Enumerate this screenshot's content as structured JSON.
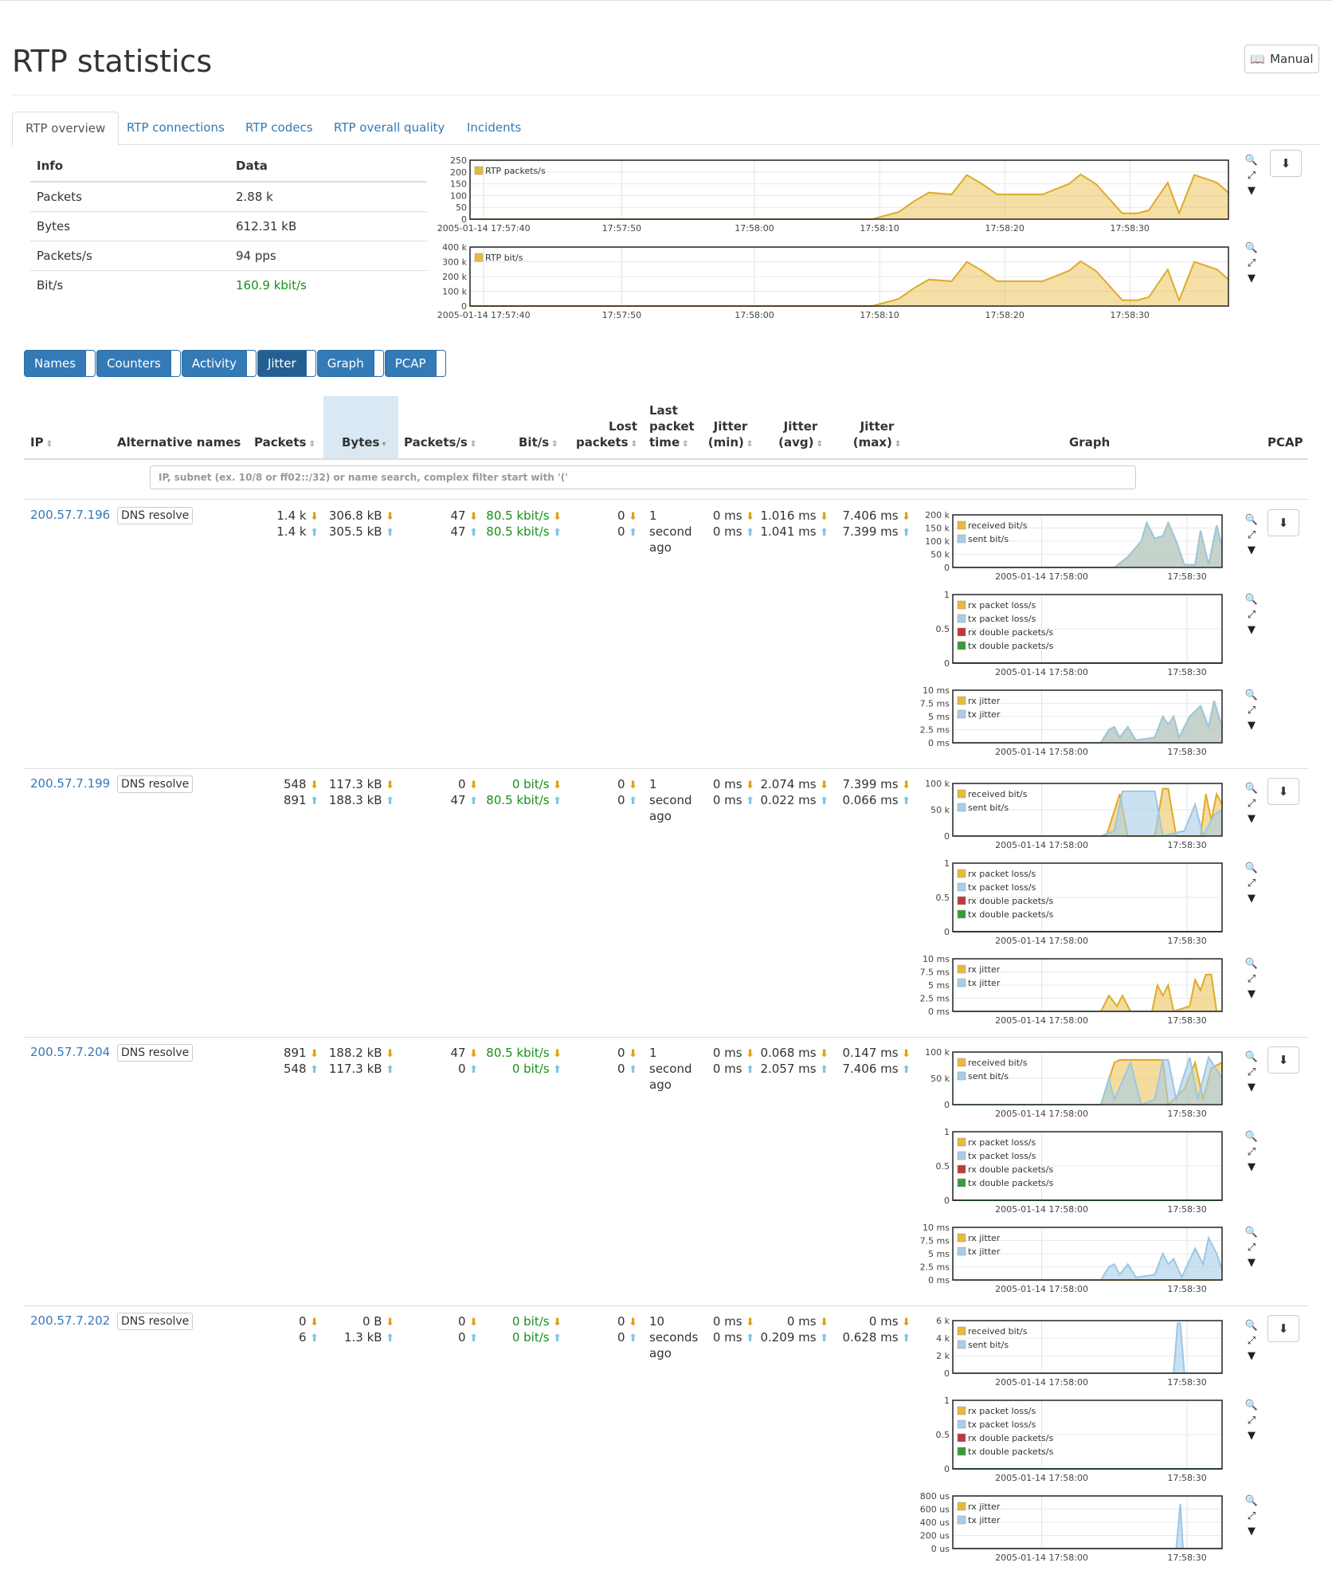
{
  "page": {
    "title": "RTP statistics",
    "manual_label": "Manual"
  },
  "tabs": [
    "RTP overview",
    "RTP connections",
    "RTP codecs",
    "RTP overall quality",
    "Incidents"
  ],
  "info_table": {
    "headers": [
      "Info",
      "Data"
    ],
    "rows": [
      {
        "label": "Packets",
        "value": "2.88 k"
      },
      {
        "label": "Bytes",
        "value": "612.31 kB"
      },
      {
        "label": "Packets/s",
        "value": "94 pps"
      },
      {
        "label": "Bit/s",
        "value": "160.9 kbit/s"
      }
    ]
  },
  "overview_charts": [
    {
      "legend": "RTP packets/s",
      "yticks": [
        "250",
        "200",
        "150",
        "100",
        "50",
        "0"
      ],
      "xticks": [
        "2005-01-14 17:57:40",
        "17:57:50",
        "17:58:00",
        "17:58:10",
        "17:58:20",
        "17:58:30"
      ]
    },
    {
      "legend": "RTP bit/s",
      "yticks": [
        "400 k",
        "300 k",
        "200 k",
        "100 k",
        "0"
      ],
      "xticks": [
        "2005-01-14 17:57:40",
        "17:57:50",
        "17:58:00",
        "17:58:10",
        "17:58:20",
        "17:58:30"
      ]
    }
  ],
  "view_buttons": [
    "Names",
    "Counters",
    "Activity",
    "Jitter",
    "Graph",
    "PCAP"
  ],
  "active_view": "Jitter",
  "table": {
    "headers": {
      "ip": "IP",
      "alt": "Alternative names",
      "packets": "Packets",
      "bytes": "Bytes",
      "pps": "Packets/s",
      "bits": "Bit/s",
      "lost_1": "Lost",
      "lost_2": "packets",
      "lpt_1": "Last",
      "lpt_2": "packet",
      "lpt_3": "time",
      "jmin_1": "Jitter",
      "jmin_2": "(min)",
      "javg_1": "Jitter",
      "javg_2": "(avg)",
      "jmax_1": "Jitter",
      "jmax_2": "(max)",
      "graph": "Graph",
      "pcap": "PCAP"
    },
    "filter_placeholder": "IP, subnet (ex. 10/8 or ff02::/32) or name search, complex filter start with '('",
    "dns_label": "DNS resolve",
    "rows": [
      {
        "ip": "200.57.7.196",
        "packets": [
          "1.4 k",
          "1.4 k"
        ],
        "bytes": [
          "306.8 kB",
          "305.5 kB"
        ],
        "pps": [
          "47",
          "47"
        ],
        "bits": [
          "80.5 kbit/s",
          "80.5 kbit/s"
        ],
        "lost": [
          "0",
          "0"
        ],
        "last": [
          "1",
          "second",
          "ago"
        ],
        "jmin": [
          "0 ms",
          "0 ms"
        ],
        "javg": [
          "1.016 ms",
          "1.041 ms"
        ],
        "jmax": [
          "7.406 ms",
          "7.399 ms"
        ],
        "bit_yticks": [
          "200 k",
          "150 k",
          "100 k",
          "50 k",
          "0"
        ],
        "jitter_yticks": [
          "10 ms",
          "7.5 ms",
          "5 ms",
          "2.5 ms",
          "0 ms"
        ]
      },
      {
        "ip": "200.57.7.199",
        "packets": [
          "548",
          "891"
        ],
        "bytes": [
          "117.3 kB",
          "188.3 kB"
        ],
        "pps": [
          "0",
          "47"
        ],
        "bits": [
          "0 bit/s",
          "80.5 kbit/s"
        ],
        "lost": [
          "0",
          "0"
        ],
        "last": [
          "1",
          "second",
          "ago"
        ],
        "jmin": [
          "0 ms",
          "0 ms"
        ],
        "javg": [
          "2.074 ms",
          "0.022 ms"
        ],
        "jmax": [
          "7.399 ms",
          "0.066 ms"
        ],
        "bit_yticks": [
          "100 k",
          "50 k",
          "0"
        ],
        "jitter_yticks": [
          "10 ms",
          "7.5 ms",
          "5 ms",
          "2.5 ms",
          "0 ms"
        ]
      },
      {
        "ip": "200.57.7.204",
        "packets": [
          "891",
          "548"
        ],
        "bytes": [
          "188.2 kB",
          "117.3 kB"
        ],
        "pps": [
          "47",
          "0"
        ],
        "bits": [
          "80.5 kbit/s",
          "0 bit/s"
        ],
        "lost": [
          "0",
          "0"
        ],
        "last": [
          "1",
          "second",
          "ago"
        ],
        "jmin": [
          "0 ms",
          "0 ms"
        ],
        "javg": [
          "0.068 ms",
          "2.057 ms"
        ],
        "jmax": [
          "0.147 ms",
          "7.406 ms"
        ],
        "bit_yticks": [
          "100 k",
          "50 k",
          "0"
        ],
        "jitter_yticks": [
          "10 ms",
          "7.5 ms",
          "5 ms",
          "2.5 ms",
          "0 ms"
        ]
      },
      {
        "ip": "200.57.7.202",
        "packets": [
          "0",
          "6"
        ],
        "bytes": [
          "0 B",
          "1.3 kB"
        ],
        "pps": [
          "0",
          "0"
        ],
        "bits": [
          "0 bit/s",
          "0 bit/s"
        ],
        "lost": [
          "0",
          "0"
        ],
        "last": [
          "10",
          "seconds",
          "ago"
        ],
        "jmin": [
          "0 ms",
          "0 ms"
        ],
        "javg": [
          "0 ms",
          "0.209 ms"
        ],
        "jmax": [
          "0 ms",
          "0.628 ms"
        ],
        "bit_yticks": [
          "6 k",
          "4 k",
          "2 k",
          "0"
        ],
        "jitter_yticks": [
          "800 us",
          "600 us",
          "400 us",
          "200 us",
          "0 us"
        ]
      }
    ]
  },
  "mini_chart": {
    "xticks": [
      "2005-01-14 17:58:00",
      "17:58:30"
    ],
    "bit_legend": [
      "received bit/s",
      "sent bit/s"
    ],
    "loss_legend": [
      "rx packet loss/s",
      "tx packet loss/s",
      "rx double packets/s",
      "tx double packets/s"
    ],
    "loss_yticks": [
      "1",
      "0.5",
      "0"
    ],
    "jitter_legend": [
      "rx jitter",
      "tx jitter"
    ]
  },
  "colors": {
    "accent": "#337ab7",
    "rx": "#e8b93c",
    "tx": "#a7cde8",
    "rx_double": "#c0393b",
    "tx_double": "#3a9a3a",
    "green_text": "#179017"
  },
  "icons": [
    "manual-book-icon",
    "zoom-icon",
    "collapse-icon",
    "caret-down-icon",
    "download-icon",
    "arrow-down-icon",
    "arrow-up-icon",
    "sort-icon"
  ]
}
